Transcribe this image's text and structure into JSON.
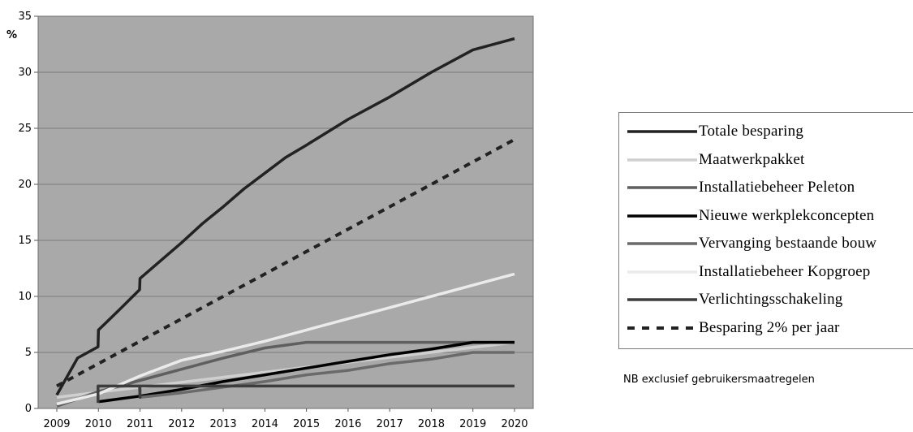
{
  "chart_data": {
    "type": "line",
    "ylabel": "%",
    "ylim": [
      0,
      35
    ],
    "yticks": [
      "0",
      "5",
      "10",
      "15",
      "20",
      "25",
      "30",
      "35"
    ],
    "categories": [
      "2009",
      "2010",
      "2011",
      "2012",
      "2013",
      "2014",
      "2015",
      "2016",
      "2017",
      "2018",
      "2019",
      "2020"
    ],
    "grid": true,
    "legend_position": "right",
    "series": [
      {
        "name": "Totale besparing",
        "color": "#222222",
        "dash": "solid",
        "points": [
          [
            2009,
            1.2
          ],
          [
            2009.5,
            4.5
          ],
          [
            2009.99,
            5.5
          ],
          [
            2010,
            7
          ],
          [
            2010.5,
            8.8
          ],
          [
            2010.99,
            10.6
          ],
          [
            2011,
            11.6
          ],
          [
            2011.5,
            13.2
          ],
          [
            2012,
            14.8
          ],
          [
            2012.5,
            16.5
          ],
          [
            2013,
            18.0
          ],
          [
            2013.5,
            19.6
          ],
          [
            2014,
            21.0
          ],
          [
            2014.5,
            22.4
          ],
          [
            2015,
            23.5
          ],
          [
            2016,
            25.8
          ],
          [
            2017,
            27.8
          ],
          [
            2018,
            30.0
          ],
          [
            2019,
            32.0
          ],
          [
            2020,
            33.0
          ]
        ]
      },
      {
        "name": "Maatwerkpakket",
        "color": "#cfcfcf",
        "dash": "solid",
        "points": [
          [
            2009,
            1.0
          ],
          [
            2020,
            5.9
          ]
        ]
      },
      {
        "name": "Installatiebeheer Peleton",
        "color": "#5f5f5f",
        "dash": "solid",
        "points": [
          [
            2009,
            0.2
          ],
          [
            2010,
            1.5
          ],
          [
            2011,
            2.5
          ],
          [
            2012,
            3.5
          ],
          [
            2013,
            4.5
          ],
          [
            2014,
            5.4
          ],
          [
            2015,
            5.9
          ],
          [
            2016,
            5.9
          ],
          [
            2017,
            5.9
          ],
          [
            2018,
            5.9
          ],
          [
            2019,
            5.9
          ],
          [
            2020,
            5.9
          ]
        ]
      },
      {
        "name": "Nieuwe werkplekconcepten",
        "color": "#000000",
        "dash": "solid",
        "points": [
          [
            2010,
            0.6
          ],
          [
            2011,
            1.1
          ],
          [
            2012,
            1.7
          ],
          [
            2013,
            2.4
          ],
          [
            2014,
            3.0
          ],
          [
            2015,
            3.6
          ],
          [
            2016,
            4.2
          ],
          [
            2017,
            4.8
          ],
          [
            2018,
            5.3
          ],
          [
            2019,
            5.9
          ],
          [
            2020,
            5.9
          ]
        ]
      },
      {
        "name": "Vervanging bestaande bouw",
        "color": "#6a6a6a",
        "dash": "solid",
        "points": [
          [
            2011,
            1.0
          ],
          [
            2012,
            1.4
          ],
          [
            2013,
            1.9
          ],
          [
            2014,
            2.4
          ],
          [
            2015,
            3.0
          ],
          [
            2016,
            3.4
          ],
          [
            2017,
            4.0
          ],
          [
            2018,
            4.4
          ],
          [
            2019,
            5.0
          ],
          [
            2020,
            5.0
          ]
        ]
      },
      {
        "name": "Installatiebeheer Kopgroep",
        "color": "#ebebeb",
        "dash": "solid",
        "points": [
          [
            2009,
            0.4
          ],
          [
            2010,
            1.3
          ],
          [
            2011,
            2.9
          ],
          [
            2012,
            4.3
          ],
          [
            2013,
            5.1
          ],
          [
            2014,
            6.0
          ],
          [
            2015,
            7.0
          ],
          [
            2016,
            8.0
          ],
          [
            2017,
            9.0
          ],
          [
            2018,
            10.0
          ],
          [
            2019,
            11.0
          ],
          [
            2020,
            12.0
          ]
        ]
      },
      {
        "name": "Verlichtingsschakeling",
        "color": "#3d3d3d",
        "dash": "solid",
        "points": [
          [
            2009.99,
            0.5
          ],
          [
            2009.99,
            2.0
          ],
          [
            2010.99,
            2.0
          ],
          [
            2011,
            1.0
          ],
          [
            2011,
            2.0
          ],
          [
            2012,
            2.0
          ],
          [
            2013,
            2.0
          ],
          [
            2014,
            2.0
          ],
          [
            2015,
            2.0
          ],
          [
            2016,
            2.0
          ],
          [
            2017,
            2.0
          ],
          [
            2018,
            2.0
          ],
          [
            2019,
            2.0
          ],
          [
            2020,
            2.0
          ]
        ]
      },
      {
        "name": "Besparing 2% per jaar",
        "color": "#222222",
        "dash": "dashed",
        "points": [
          [
            2009,
            2.0
          ],
          [
            2010,
            4.0
          ],
          [
            2011,
            6.0
          ],
          [
            2012,
            8.0
          ],
          [
            2013,
            10.0
          ],
          [
            2014,
            12.0
          ],
          [
            2015,
            14.0
          ],
          [
            2016,
            16.0
          ],
          [
            2017,
            18.0
          ],
          [
            2018,
            20.0
          ],
          [
            2019,
            22.0
          ],
          [
            2020,
            24.0
          ]
        ]
      }
    ]
  },
  "note": "NB exclusief gebruikersmaatregelen"
}
